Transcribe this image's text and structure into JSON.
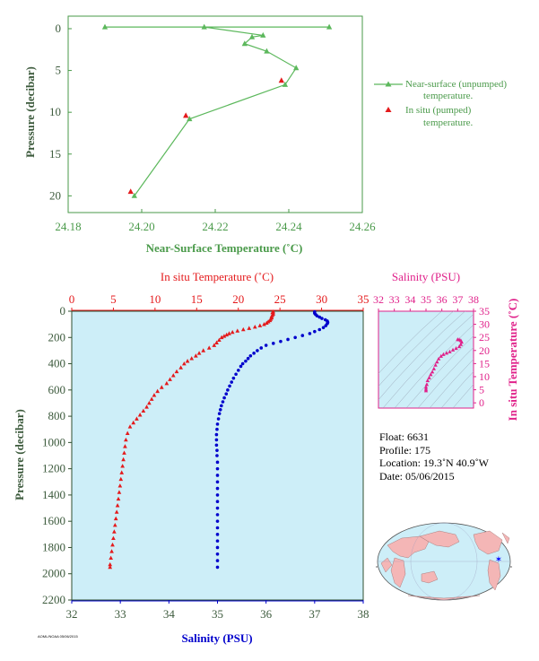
{
  "chart_data": [
    {
      "type": "line",
      "name": "near-surface",
      "xlabel": "Near-Surface Temperature (˚C)",
      "ylabel": "Pressure (decibar)",
      "xlim": [
        24.18,
        24.26
      ],
      "ylim": [
        22,
        -1.5
      ],
      "x_ticks": [
        "24.18",
        "24.20",
        "24.22",
        "24.24",
        "24.26"
      ],
      "y_ticks": [
        "0",
        "5",
        "10",
        "15",
        "20"
      ],
      "series": [
        {
          "name": "Near-surface (unpumped) temperature.",
          "color": "#5cb85c",
          "marker": "triangle",
          "line": true,
          "points": [
            [
              24.19,
              -0.2
            ],
            [
              24.251,
              -0.2
            ],
            [
              24.217,
              -0.2
            ],
            [
              24.233,
              0.8
            ],
            [
              24.23,
              1.0
            ],
            [
              24.228,
              1.8
            ],
            [
              24.234,
              2.7
            ],
            [
              24.242,
              4.7
            ],
            [
              24.239,
              6.7
            ],
            [
              24.213,
              10.8
            ],
            [
              24.198,
              20.0
            ]
          ]
        },
        {
          "name": "In situ (pumped) temperature.",
          "color": "#e41a1c",
          "marker": "triangle",
          "line": false,
          "points": [
            [
              24.238,
              6.2
            ],
            [
              24.212,
              10.4
            ],
            [
              24.197,
              19.5
            ]
          ]
        }
      ]
    },
    {
      "type": "scatter",
      "name": "profile",
      "top_axis": {
        "label": "In situ Temperature (˚C)",
        "lim": [
          0,
          35
        ],
        "ticks": [
          "0",
          "5",
          "10",
          "15",
          "20",
          "25",
          "30",
          "35"
        ]
      },
      "bottom_axis": {
        "label": "Salinity (PSU)",
        "lim": [
          32,
          38
        ],
        "ticks": [
          "32",
          "33",
          "34",
          "35",
          "36",
          "37",
          "38"
        ]
      },
      "ylabel": "Pressure (decibar)",
      "ylim": [
        0,
        2200
      ],
      "y_ticks": [
        "0",
        "200",
        "400",
        "600",
        "800",
        "1000",
        "1200",
        "1400",
        "1600",
        "1800",
        "2000",
        "2200"
      ],
      "temperature": {
        "color": "#e41a1c",
        "marker": "triangle",
        "points": [
          [
            24.2,
            5
          ],
          [
            24.1,
            10
          ],
          [
            24.2,
            20
          ],
          [
            24.1,
            30
          ],
          [
            24.0,
            40
          ],
          [
            24.0,
            50
          ],
          [
            23.9,
            60
          ],
          [
            23.8,
            70
          ],
          [
            23.6,
            80
          ],
          [
            23.4,
            90
          ],
          [
            23.1,
            100
          ],
          [
            22.6,
            110
          ],
          [
            22.0,
            120
          ],
          [
            21.3,
            130
          ],
          [
            20.6,
            140
          ],
          [
            19.9,
            150
          ],
          [
            19.3,
            160
          ],
          [
            18.9,
            170
          ],
          [
            18.6,
            180
          ],
          [
            18.3,
            190
          ],
          [
            18.0,
            200
          ],
          [
            17.7,
            220
          ],
          [
            17.4,
            240
          ],
          [
            17.1,
            260
          ],
          [
            16.5,
            280
          ],
          [
            15.8,
            300
          ],
          [
            15.3,
            320
          ],
          [
            14.9,
            340
          ],
          [
            14.4,
            360
          ],
          [
            13.9,
            380
          ],
          [
            13.5,
            400
          ],
          [
            13.1,
            430
          ],
          [
            12.6,
            460
          ],
          [
            12.2,
            490
          ],
          [
            11.8,
            520
          ],
          [
            11.4,
            550
          ],
          [
            10.8,
            580
          ],
          [
            10.3,
            610
          ],
          [
            9.9,
            640
          ],
          [
            9.6,
            670
          ],
          [
            9.3,
            700
          ],
          [
            9.0,
            730
          ],
          [
            8.6,
            760
          ],
          [
            8.2,
            790
          ],
          [
            7.8,
            820
          ],
          [
            7.4,
            850
          ],
          [
            7.0,
            880
          ],
          [
            6.7,
            930
          ],
          [
            6.5,
            980
          ],
          [
            6.4,
            1030
          ],
          [
            6.3,
            1080
          ],
          [
            6.2,
            1130
          ],
          [
            6.1,
            1180
          ],
          [
            6.0,
            1230
          ],
          [
            5.9,
            1280
          ],
          [
            5.8,
            1330
          ],
          [
            5.7,
            1380
          ],
          [
            5.6,
            1430
          ],
          [
            5.5,
            1480
          ],
          [
            5.4,
            1530
          ],
          [
            5.3,
            1580
          ],
          [
            5.2,
            1630
          ],
          [
            5.1,
            1680
          ],
          [
            5.0,
            1730
          ],
          [
            4.9,
            1780
          ],
          [
            4.8,
            1830
          ],
          [
            4.7,
            1880
          ],
          [
            4.6,
            1930
          ],
          [
            4.6,
            1950
          ]
        ]
      },
      "salinity": {
        "color": "#0000cc",
        "marker": "circle",
        "points": [
          [
            37.0,
            5
          ],
          [
            37.0,
            15
          ],
          [
            37.02,
            25
          ],
          [
            37.05,
            35
          ],
          [
            37.1,
            45
          ],
          [
            37.15,
            55
          ],
          [
            37.22,
            65
          ],
          [
            37.26,
            75
          ],
          [
            37.27,
            85
          ],
          [
            37.26,
            95
          ],
          [
            37.23,
            110
          ],
          [
            37.18,
            125
          ],
          [
            37.1,
            140
          ],
          [
            37.0,
            155
          ],
          [
            36.9,
            170
          ],
          [
            36.75,
            185
          ],
          [
            36.6,
            200
          ],
          [
            36.45,
            215
          ],
          [
            36.3,
            230
          ],
          [
            36.15,
            245
          ],
          [
            36.0,
            260
          ],
          [
            35.9,
            280
          ],
          [
            35.82,
            300
          ],
          [
            35.75,
            320
          ],
          [
            35.68,
            340
          ],
          [
            35.63,
            360
          ],
          [
            35.58,
            380
          ],
          [
            35.52,
            400
          ],
          [
            35.48,
            420
          ],
          [
            35.43,
            450
          ],
          [
            35.38,
            480
          ],
          [
            35.33,
            510
          ],
          [
            35.29,
            540
          ],
          [
            35.25,
            570
          ],
          [
            35.21,
            600
          ],
          [
            35.18,
            630
          ],
          [
            35.14,
            660
          ],
          [
            35.11,
            690
          ],
          [
            35.08,
            720
          ],
          [
            35.06,
            750
          ],
          [
            35.04,
            780
          ],
          [
            35.02,
            820
          ],
          [
            35.0,
            860
          ],
          [
            34.99,
            900
          ],
          [
            34.98,
            940
          ],
          [
            34.98,
            980
          ],
          [
            34.98,
            1020
          ],
          [
            34.99,
            1060
          ],
          [
            34.99,
            1100
          ],
          [
            35.0,
            1150
          ],
          [
            35.0,
            1200
          ],
          [
            35.0,
            1250
          ],
          [
            35.0,
            1300
          ],
          [
            35.0,
            1350
          ],
          [
            35.0,
            1400
          ],
          [
            35.0,
            1450
          ],
          [
            35.0,
            1500
          ],
          [
            35.0,
            1550
          ],
          [
            35.0,
            1600
          ],
          [
            35.0,
            1650
          ],
          [
            35.0,
            1700
          ],
          [
            35.0,
            1750
          ],
          [
            35.0,
            1800
          ],
          [
            35.0,
            1850
          ],
          [
            35.0,
            1900
          ],
          [
            35.0,
            1950
          ]
        ]
      },
      "background": "#cdeef8"
    },
    {
      "type": "scatter",
      "name": "ts-diagram",
      "xlabel": "Salinity (PSU)",
      "ylabel": "In situ Temperature (˚C)",
      "xlim": [
        32,
        38
      ],
      "ylim": [
        -2,
        35
      ],
      "x_ticks": [
        "32",
        "33",
        "34",
        "35",
        "36",
        "37",
        "38"
      ],
      "y_ticks": [
        "0",
        "5",
        "10",
        "15",
        "20",
        "25",
        "30",
        "35"
      ],
      "color": "#e0218a",
      "points": [
        [
          35.0,
          4.6
        ],
        [
          35.0,
          5.2
        ],
        [
          35.0,
          6.0
        ],
        [
          35.05,
          7.0
        ],
        [
          35.1,
          8.5
        ],
        [
          35.2,
          9.6
        ],
        [
          35.3,
          10.8
        ],
        [
          35.4,
          11.8
        ],
        [
          35.5,
          13.0
        ],
        [
          35.6,
          14.4
        ],
        [
          35.7,
          15.6
        ],
        [
          35.8,
          16.8
        ],
        [
          35.95,
          17.8
        ],
        [
          36.1,
          18.5
        ],
        [
          36.3,
          19.0
        ],
        [
          36.5,
          19.5
        ],
        [
          36.7,
          20.2
        ],
        [
          36.9,
          20.8
        ],
        [
          37.1,
          21.5
        ],
        [
          37.2,
          22.3
        ],
        [
          37.25,
          23.2
        ],
        [
          37.2,
          23.8
        ],
        [
          37.1,
          24.1
        ],
        [
          37.0,
          24.2
        ]
      ]
    }
  ],
  "legend": {
    "near_surface": "Near-surface (unpumped)",
    "near_surface_2": "temperature.",
    "in_situ": "In situ (pumped)",
    "in_situ_2": "temperature."
  },
  "info": {
    "float": "Float:  6631",
    "profile": "Profile:  175",
    "location": "Location:  19.3˚N  40.9˚W",
    "date": "Date:  05/06/2015"
  },
  "map": {
    "marker_color": "#0000ff",
    "land_color": "#f4b6b6",
    "ocean_color": "#cdeef8"
  },
  "stamp": "AOML/NOAA  05/06/2015"
}
